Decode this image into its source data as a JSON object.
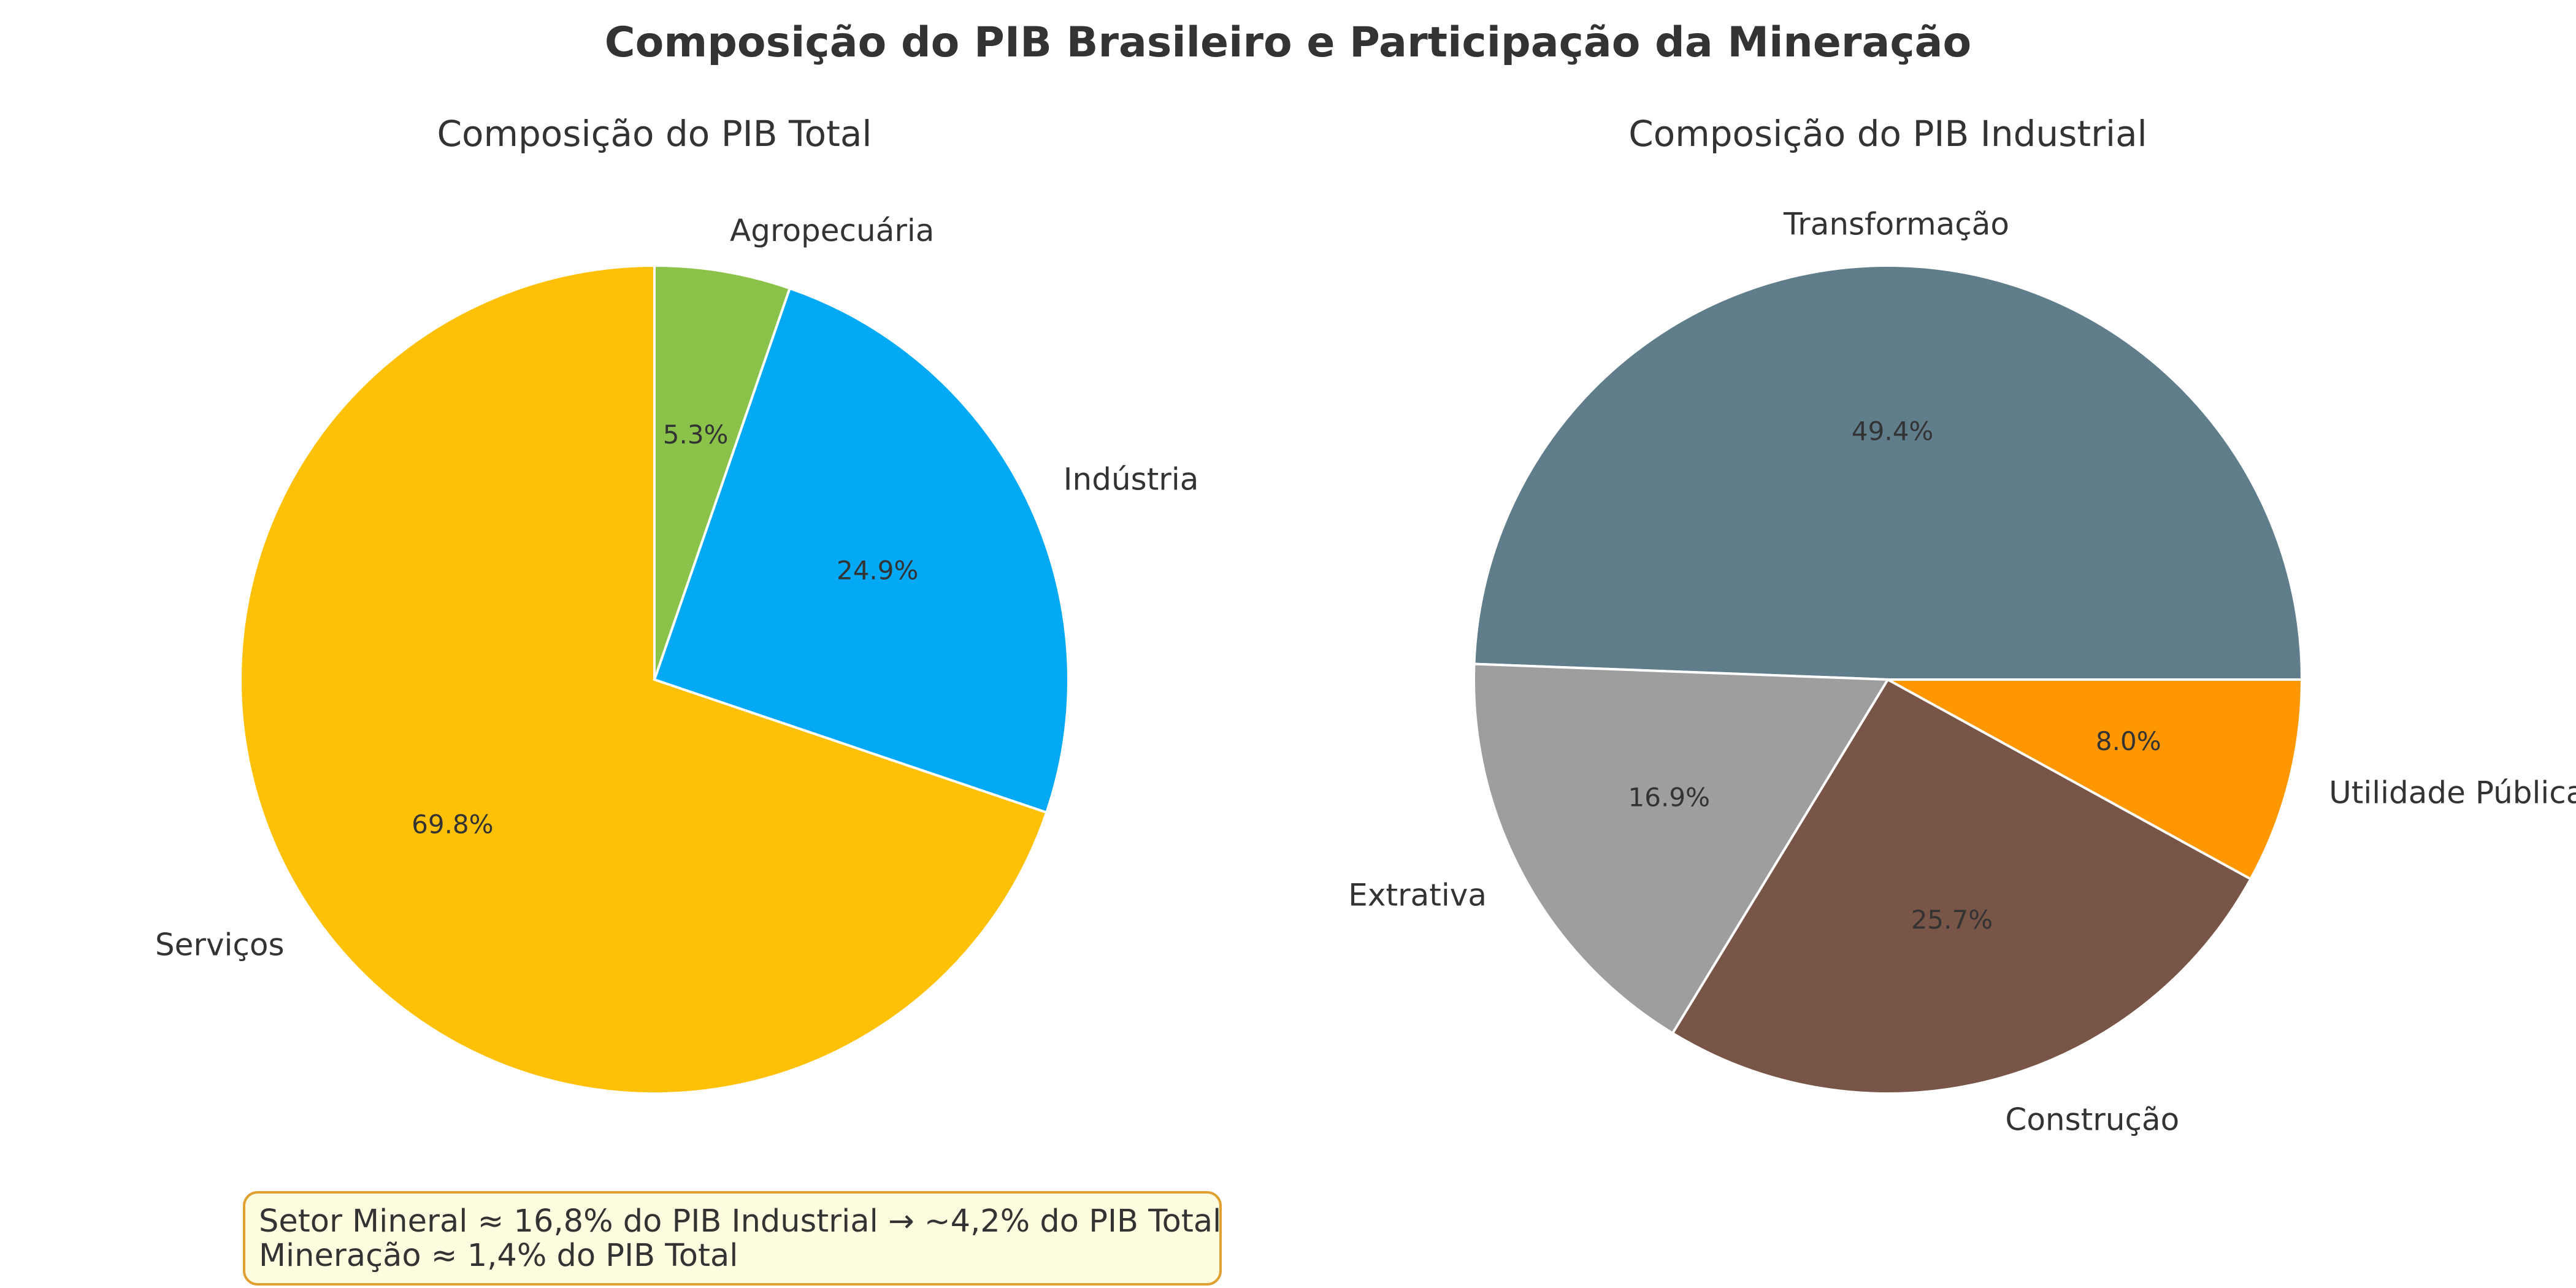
{
  "suptitle": "Composição do PIB Brasileiro e Participação da Mineração",
  "chart_data": [
    {
      "type": "pie",
      "title": "Composição do PIB Total",
      "start_angle_deg": 90,
      "direction": "counterclockwise",
      "slices": [
        {
          "label": "Serviços",
          "value": 69.8,
          "pct_label": "69.8%",
          "color": "#FFC107"
        },
        {
          "label": "Indústria",
          "value": 24.9,
          "pct_label": "24.9%",
          "color": "#03A9F4"
        },
        {
          "label": "Agropecuária",
          "value": 5.3,
          "pct_label": "5.3%",
          "color": "#8BC34A"
        }
      ]
    },
    {
      "type": "pie",
      "title": "Composição do PIB Industrial",
      "start_angle_deg": 0,
      "direction": "counterclockwise",
      "slices": [
        {
          "label": "Transformação",
          "value": 49.4,
          "pct_label": "49.4%",
          "color": "#607D8B"
        },
        {
          "label": "Extrativa",
          "value": 16.9,
          "pct_label": "16.9%",
          "color": "#9E9E9E"
        },
        {
          "label": "Construção",
          "value": 25.7,
          "pct_label": "25.7%",
          "color": "#795548"
        },
        {
          "label": "Utilidade Pública",
          "value": 8.0,
          "pct_label": "8.0%",
          "color": "#FF9800"
        }
      ]
    }
  ],
  "note": {
    "line1": "Setor Mineral ≈ 16,8% do PIB Industrial → ~4,2% do PIB Total",
    "line2": "Mineração ≈ 1,4% do PIB Total",
    "background": "#FFFDE0",
    "border": "#E0A030"
  }
}
